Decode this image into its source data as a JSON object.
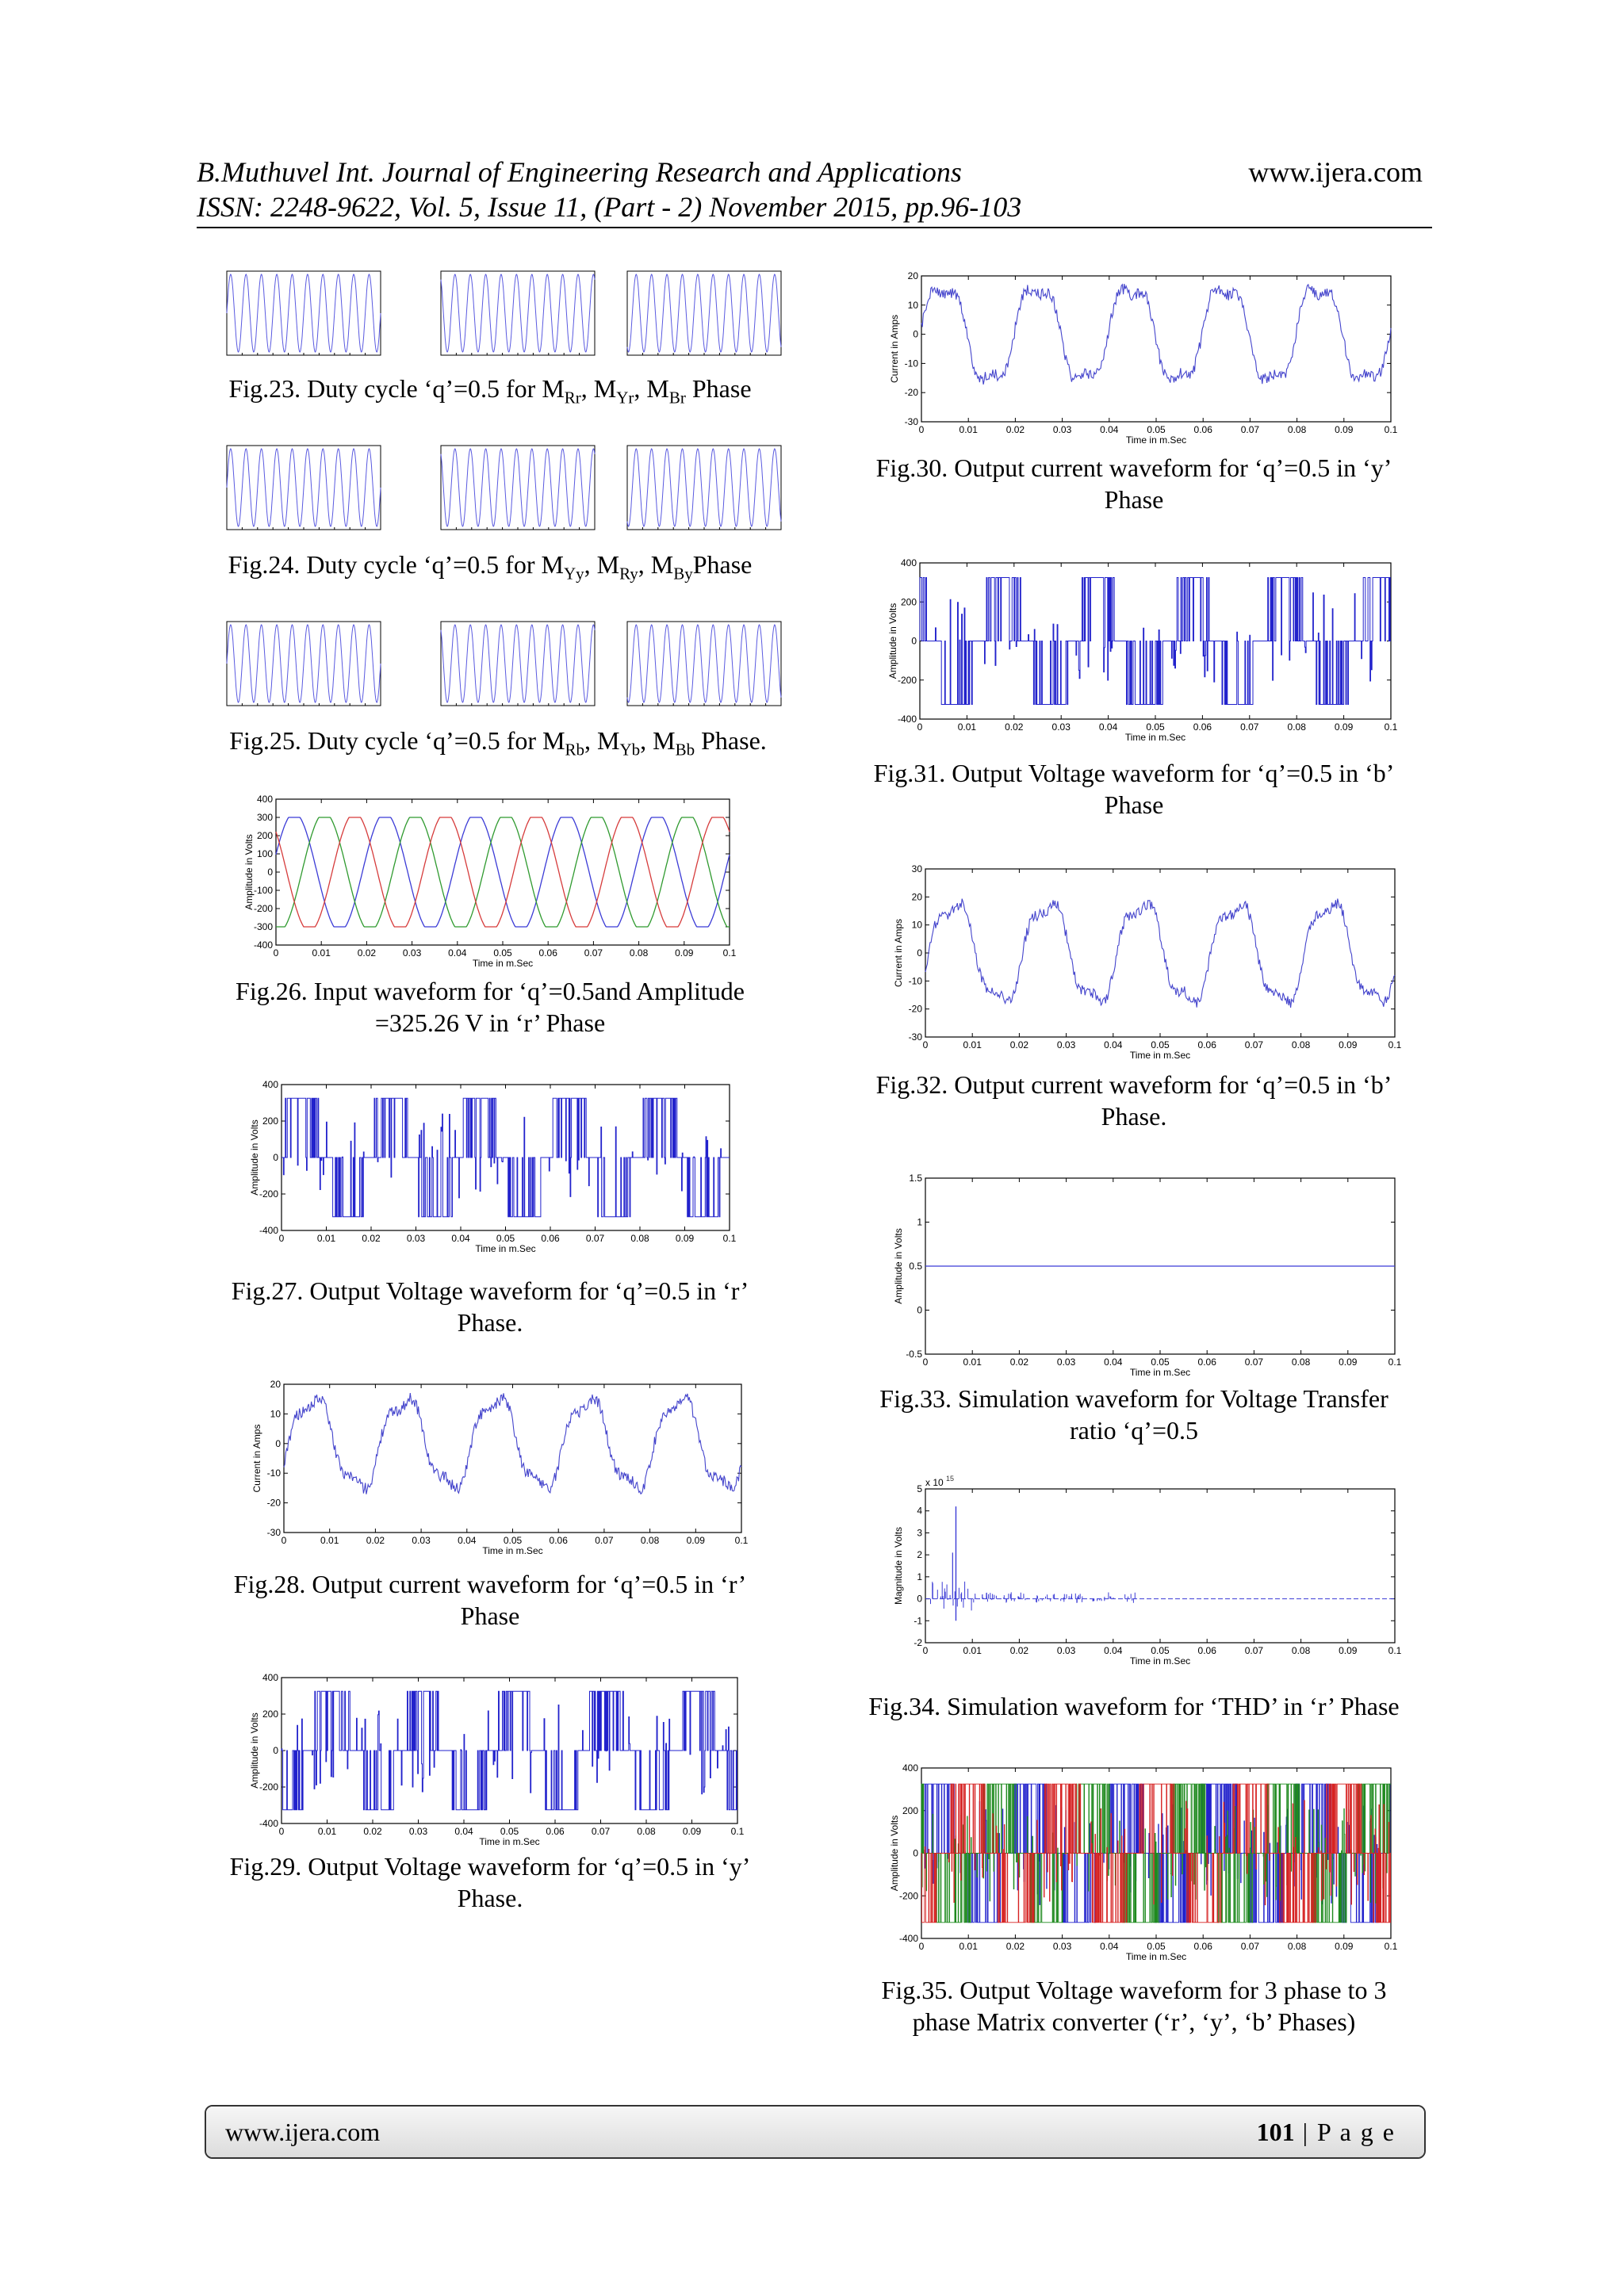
{
  "header": {
    "line1": "B.Muthuvel Int. Journal of Engineering Research and Applications",
    "line2": "ISSN: 2248-9622, Vol. 5, Issue 11, (Part - 2) November 2015, pp.96-103",
    "site": "www.ijera.com"
  },
  "captions": {
    "fig23": {
      "pre": "Fig.23. Duty cycle ‘q’=0.5 for M",
      "s1": "Rr",
      "m1": ", M",
      "s2": "Yr",
      "m2": ", M",
      "s3": "Br",
      "post": " Phase"
    },
    "fig24": {
      "pre": "Fig.24. Duty cycle ‘q’=0.5 for M",
      "s1": "Yy",
      "m1": ", M",
      "s2": "Ry",
      "m2": ", M",
      "s3": "By",
      "post": "Phase"
    },
    "fig25": {
      "pre": "Fig.25. Duty cycle ‘q’=0.5 for M",
      "s1": "Rb",
      "m1": ", M",
      "s2": "Yb",
      "m2": ", M",
      "s3": "Bb",
      "post": " Phase."
    },
    "fig26": {
      "l1": "Fig.26. Input waveform for ‘q’=0.5and Amplitude",
      "l2": "=325.26 V in ‘r’ Phase"
    },
    "fig27": {
      "l1": "Fig.27. Output Voltage waveform for ‘q’=0.5 in ‘r’",
      "l2": "Phase."
    },
    "fig28": {
      "l1": "Fig.28. Output current waveform for ‘q’=0.5 in ‘r’",
      "l2": "Phase"
    },
    "fig29": {
      "l1": "Fig.29. Output Voltage waveform for ‘q’=0.5 in ‘y’",
      "l2": "Phase."
    },
    "fig30": {
      "l1": "Fig.30. Output current waveform for ‘q’=0.5 in ‘y’",
      "l2": "Phase"
    },
    "fig31": {
      "l1": "Fig.31. Output Voltage waveform for ‘q’=0.5 in ‘b’",
      "l2": "Phase"
    },
    "fig32": {
      "l1": "Fig.32. Output current waveform for ‘q’=0.5 in ‘b’",
      "l2": "Phase."
    },
    "fig33": {
      "l1": "Fig.33. Simulation waveform for Voltage Transfer",
      "l2": "ratio ‘q’=0.5"
    },
    "fig34": {
      "l1": "Fig.34. Simulation waveform for ‘THD’ in ‘r’ Phase"
    },
    "fig35": {
      "l1": "Fig.35. Output Voltage waveform for 3 phase to 3",
      "l2": "phase Matrix converter (‘r’, ‘y’, ‘b’ Phases)"
    }
  },
  "footer": {
    "site": "www.ijera.com",
    "page": "101",
    "page_label": " | P a g e"
  },
  "chart_data": [
    {
      "id": "fig23",
      "type": "line",
      "xlim": [
        0,
        0.1
      ],
      "ylim": [
        0,
        1
      ],
      "waveform": "sinusoid",
      "series": [
        {
          "values": [
            0.5,
            1,
            0.5,
            0
          ]
        },
        {
          "values": [
            0.5,
            1,
            0.5,
            0
          ]
        },
        {
          "values": [
            0.5,
            1,
            0.5,
            0
          ]
        }
      ]
    },
    {
      "id": "fig24",
      "type": "line",
      "xlim": [
        0,
        0.1
      ],
      "ylim": [
        0,
        1
      ],
      "waveform": "sinusoid",
      "series": [
        {
          "values": [
            0.5,
            1,
            0.5,
            0
          ]
        },
        {
          "values": [
            0.5,
            1,
            0.5,
            0
          ]
        },
        {
          "values": [
            0.5,
            1,
            0.5,
            0
          ]
        }
      ]
    },
    {
      "id": "fig25",
      "type": "line",
      "xlim": [
        0,
        0.1
      ],
      "ylim": [
        0,
        1
      ],
      "waveform": "sinusoid",
      "series": [
        {
          "values": [
            0.5,
            1,
            0.5,
            0
          ]
        },
        {
          "values": [
            0.5,
            1,
            0.5,
            0
          ]
        },
        {
          "values": [
            0.5,
            1,
            0.5,
            0
          ]
        }
      ]
    },
    {
      "id": "fig26",
      "type": "line",
      "xlabel": "Time in m.Sec",
      "ylabel": "Amplitude in Volts",
      "xlim": [
        0,
        0.1
      ],
      "ylim": [
        -400,
        400
      ],
      "xticks": [
        "0",
        "0.01",
        "0.02",
        "0.03",
        "0.04",
        "0.05",
        "0.06",
        "0.07",
        "0.08",
        "0.09",
        "0.1"
      ],
      "yticks": [
        "400",
        "300",
        "200",
        "100",
        "0",
        "-100",
        "-200",
        "-300",
        "-400"
      ],
      "waveform": "three-phase clipped sinusoid",
      "amplitude": 325.26,
      "clip": 300,
      "cycles": 5,
      "series": [
        {
          "color": "#3b3bd6"
        },
        {
          "color": "#2f9a2f"
        },
        {
          "color": "#d63b3b"
        }
      ]
    },
    {
      "id": "fig27",
      "type": "line",
      "xlabel": "Time in m.Sec",
      "ylabel": "Amplitude in Volts",
      "xlim": [
        0,
        0.1
      ],
      "ylim": [
        -400,
        400
      ],
      "xticks": [
        "0",
        "0.01",
        "0.02",
        "0.03",
        "0.04",
        "0.05",
        "0.06",
        "0.07",
        "0.08",
        "0.09",
        "0.1"
      ],
      "yticks": [
        "400",
        "200",
        "0",
        "-200",
        "-400"
      ],
      "waveform": "PWM",
      "levels": [
        -325,
        0,
        325
      ],
      "cycles": 5,
      "series": [
        {
          "color": "#2222cc"
        }
      ]
    },
    {
      "id": "fig28",
      "type": "line",
      "xlabel": "Time in m.Sec",
      "ylabel": "Current in Amps",
      "xlim": [
        0,
        0.1
      ],
      "ylim": [
        -30,
        20
      ],
      "xticks": [
        "0",
        "0.01",
        "0.02",
        "0.03",
        "0.04",
        "0.05",
        "0.06",
        "0.07",
        "0.08",
        "0.09",
        "0.1"
      ],
      "yticks": [
        "20",
        "10",
        "0",
        "-10",
        "-20",
        "-30"
      ],
      "waveform": "noisy sinusoid",
      "amplitude": 15,
      "cycles": 5,
      "series": [
        {
          "color": "#4444cc"
        }
      ]
    },
    {
      "id": "fig29",
      "type": "line",
      "xlabel": "Time in m.Sec",
      "ylabel": "Amplitude in Volts",
      "xlim": [
        0,
        0.1
      ],
      "ylim": [
        -400,
        400
      ],
      "xticks": [
        "0",
        "0.01",
        "0.02",
        "0.03",
        "0.04",
        "0.05",
        "0.06",
        "0.07",
        "0.08",
        "0.09",
        "0.1"
      ],
      "yticks": [
        "400",
        "200",
        "0",
        "-200",
        "-400"
      ],
      "waveform": "PWM",
      "levels": [
        -325,
        0,
        325
      ],
      "cycles": 5,
      "series": [
        {
          "color": "#2222cc"
        }
      ]
    },
    {
      "id": "fig30",
      "type": "line",
      "xlabel": "Time in m.Sec",
      "ylabel": "Current in Amps",
      "xlim": [
        0,
        0.1
      ],
      "ylim": [
        -30,
        20
      ],
      "xticks": [
        "0",
        "0.01",
        "0.02",
        "0.03",
        "0.04",
        "0.05",
        "0.06",
        "0.07",
        "0.08",
        "0.09",
        "0.1"
      ],
      "yticks": [
        "20",
        "10",
        "0",
        "-10",
        "-20",
        "-30"
      ],
      "waveform": "noisy sinusoid",
      "amplitude": 17,
      "cycles": 5,
      "series": [
        {
          "color": "#4444cc"
        }
      ]
    },
    {
      "id": "fig31",
      "type": "line",
      "xlabel": "Time in m.Sec",
      "ylabel": "Amplitude in Volts",
      "xlim": [
        0,
        0.1
      ],
      "ylim": [
        -400,
        400
      ],
      "xticks": [
        "0",
        "0.01",
        "0.02",
        "0.03",
        "0.04",
        "0.05",
        "0.06",
        "0.07",
        "0.08",
        "0.09",
        "0.1"
      ],
      "yticks": [
        "400",
        "200",
        "0",
        "-200",
        "-400"
      ],
      "waveform": "PWM",
      "levels": [
        -325,
        0,
        325
      ],
      "cycles": 5,
      "series": [
        {
          "color": "#2222cc"
        }
      ]
    },
    {
      "id": "fig32",
      "type": "line",
      "xlabel": "Time in m.Sec",
      "ylabel": "Current in Amps",
      "xlim": [
        0,
        0.1
      ],
      "ylim": [
        -30,
        30
      ],
      "xticks": [
        "0",
        "0.01",
        "0.02",
        "0.03",
        "0.04",
        "0.05",
        "0.06",
        "0.07",
        "0.08",
        "0.09",
        "0.1"
      ],
      "yticks": [
        "30",
        "20",
        "10",
        "0",
        "-10",
        "-20",
        "-30"
      ],
      "waveform": "noisy sinusoid",
      "amplitude": 18,
      "cycles": 5,
      "series": [
        {
          "color": "#4444cc"
        }
      ]
    },
    {
      "id": "fig33",
      "type": "line",
      "xlabel": "Time in m.Sec",
      "ylabel": "Amplitude in Volts",
      "xlim": [
        0,
        0.1
      ],
      "ylim": [
        -0.5,
        1.5
      ],
      "xticks": [
        "0",
        "0.01",
        "0.02",
        "0.03",
        "0.04",
        "0.05",
        "0.06",
        "0.07",
        "0.08",
        "0.09",
        "0.1"
      ],
      "yticks": [
        "1.5",
        "1",
        "0.5",
        "0",
        "-0.5"
      ],
      "series": [
        {
          "color": "#3b3bd6",
          "x": [
            0,
            0.1
          ],
          "y": [
            0.5,
            0.5
          ]
        }
      ]
    },
    {
      "id": "fig34",
      "type": "line",
      "xlabel": "Time in m.Sec",
      "ylabel": "Magnitude in Volts",
      "xlim": [
        0,
        0.1
      ],
      "ylim": [
        -2,
        5
      ],
      "exponent": "x 10",
      "exponent_power": "15",
      "xticks": [
        "0",
        "0.01",
        "0.02",
        "0.03",
        "0.04",
        "0.05",
        "0.06",
        "0.07",
        "0.08",
        "0.09",
        "0.1"
      ],
      "yticks": [
        "5",
        "4",
        "3",
        "2",
        "1",
        "0",
        "-1",
        "-2"
      ],
      "series": [
        {
          "color": "#3b3bd6",
          "spike_x": 0.0065,
          "spike_y": 4.2
        }
      ]
    },
    {
      "id": "fig35",
      "type": "line",
      "xlabel": "Time in m.Sec",
      "ylabel": "Amplitude in Volts",
      "xlim": [
        0,
        0.1
      ],
      "ylim": [
        -400,
        400
      ],
      "xticks": [
        "0",
        "0.01",
        "0.02",
        "0.03",
        "0.04",
        "0.05",
        "0.06",
        "0.07",
        "0.08",
        "0.09",
        "0.1"
      ],
      "yticks": [
        "400",
        "200",
        "0",
        "-200",
        "-400"
      ],
      "waveform": "PWM three-phase",
      "levels": [
        -325,
        0,
        325
      ],
      "series": [
        {
          "color": "#2222cc"
        },
        {
          "color": "#1f8a1f"
        },
        {
          "color": "#d62222"
        }
      ]
    }
  ]
}
